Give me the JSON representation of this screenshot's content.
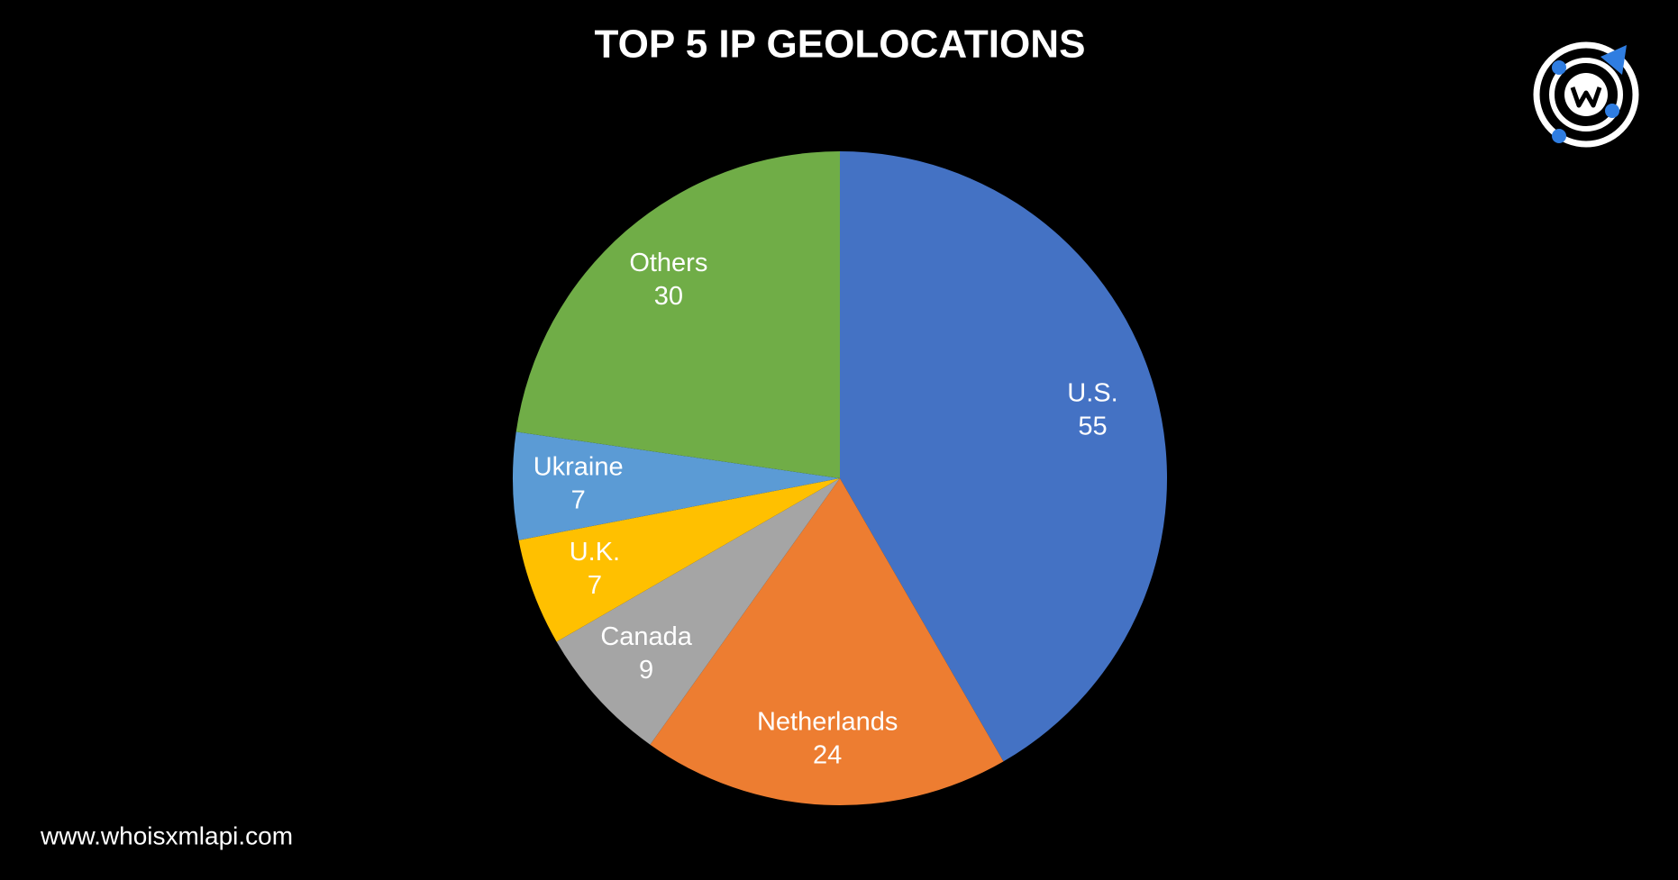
{
  "chart_data": {
    "type": "pie",
    "title": "TOP 5 IP GEOLOCATIONS",
    "categories": [
      "U.S.",
      "Netherlands",
      "Canada",
      "U.K.",
      "Ukraine",
      "Others"
    ],
    "values": [
      55,
      24,
      9,
      7,
      7,
      30
    ],
    "colors": [
      "#4472c4",
      "#ed7d31",
      "#a5a5a5",
      "#ffc000",
      "#5b9bd5",
      "#70ad47"
    ]
  },
  "footer": "www.whoisxmlapi.com"
}
